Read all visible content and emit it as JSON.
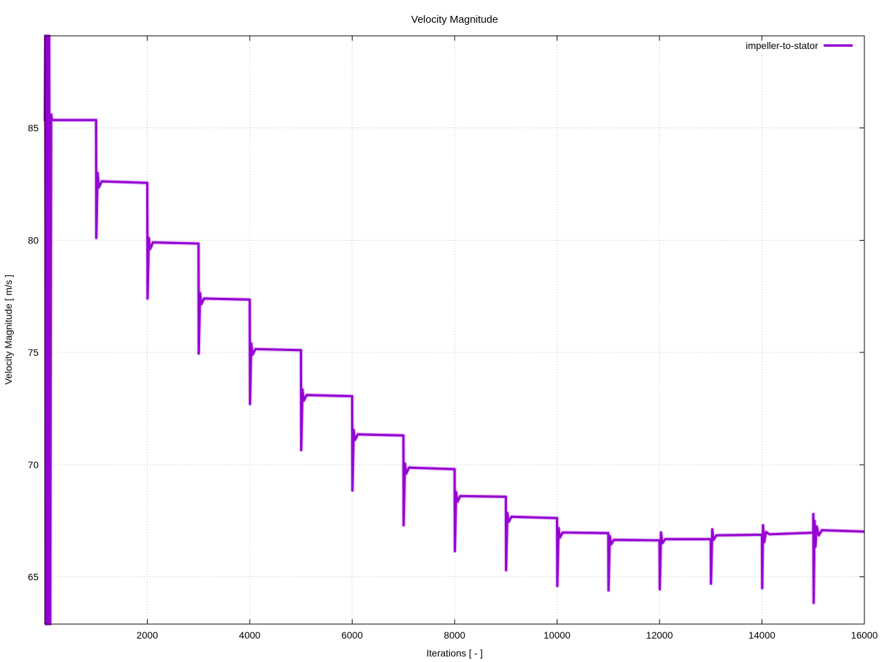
{
  "chart_data": {
    "type": "line",
    "title": "Velocity Magnitude",
    "xlabel": "Iterations [ - ]",
    "ylabel": "Velocity Magnitude [ m/s ]",
    "xlim": [
      0,
      16000
    ],
    "ylim": [
      62.9,
      89.1
    ],
    "xticks": [
      2000,
      4000,
      6000,
      8000,
      10000,
      12000,
      14000,
      16000
    ],
    "yticks": [
      65,
      70,
      75,
      80,
      85
    ],
    "grid": true,
    "grid_style": "dotted",
    "legend": {
      "position": "top-right-inside",
      "entries": [
        {
          "label": "impeller-to-stator",
          "color": "#9400d3"
        }
      ]
    },
    "series": [
      {
        "name": "impeller-to-stator",
        "color": "#9400d3",
        "points": [
          [
            1,
            85.3
          ],
          [
            10,
            89.1
          ],
          [
            25,
            62.9
          ],
          [
            45,
            89.1
          ],
          [
            65,
            62.9
          ],
          [
            85,
            89.1
          ],
          [
            105,
            62.9
          ],
          [
            122,
            85.6
          ],
          [
            140,
            85.35
          ],
          [
            1000,
            85.35
          ],
          [
            1005,
            80.1
          ],
          [
            1030,
            83.0
          ],
          [
            1055,
            82.35
          ],
          [
            1110,
            82.62
          ],
          [
            2000,
            82.55
          ],
          [
            2005,
            77.4
          ],
          [
            2030,
            80.1
          ],
          [
            2055,
            79.6
          ],
          [
            2110,
            79.9
          ],
          [
            3000,
            79.85
          ],
          [
            3005,
            74.95
          ],
          [
            3030,
            77.65
          ],
          [
            3055,
            77.15
          ],
          [
            3110,
            77.4
          ],
          [
            4000,
            77.35
          ],
          [
            4005,
            72.7
          ],
          [
            4030,
            75.4
          ],
          [
            4055,
            74.9
          ],
          [
            4110,
            75.15
          ],
          [
            5000,
            75.1
          ],
          [
            5005,
            70.65
          ],
          [
            5030,
            73.35
          ],
          [
            5055,
            72.85
          ],
          [
            5110,
            73.1
          ],
          [
            6000,
            73.05
          ],
          [
            6005,
            68.85
          ],
          [
            6030,
            71.55
          ],
          [
            6055,
            71.1
          ],
          [
            6110,
            71.35
          ],
          [
            7000,
            71.3
          ],
          [
            7005,
            67.3
          ],
          [
            7030,
            70.05
          ],
          [
            7055,
            69.6
          ],
          [
            7110,
            69.87
          ],
          [
            8000,
            69.8
          ],
          [
            8005,
            66.15
          ],
          [
            8030,
            68.78
          ],
          [
            8055,
            68.35
          ],
          [
            8110,
            68.6
          ],
          [
            9000,
            68.57
          ],
          [
            9005,
            65.3
          ],
          [
            9030,
            67.85
          ],
          [
            9055,
            67.45
          ],
          [
            9110,
            67.68
          ],
          [
            10000,
            67.62
          ],
          [
            10005,
            64.6
          ],
          [
            10030,
            67.18
          ],
          [
            10055,
            66.75
          ],
          [
            10110,
            66.98
          ],
          [
            11000,
            66.95
          ],
          [
            11005,
            64.4
          ],
          [
            11030,
            66.82
          ],
          [
            11055,
            66.45
          ],
          [
            11110,
            66.65
          ],
          [
            12000,
            66.63
          ],
          [
            12005,
            64.45
          ],
          [
            12030,
            66.98
          ],
          [
            12055,
            66.5
          ],
          [
            12110,
            66.68
          ],
          [
            13000,
            66.68
          ],
          [
            13005,
            64.7
          ],
          [
            13030,
            67.12
          ],
          [
            13055,
            66.65
          ],
          [
            13110,
            66.85
          ],
          [
            14000,
            66.88
          ],
          [
            14005,
            64.5
          ],
          [
            14022,
            67.3
          ],
          [
            14045,
            66.55
          ],
          [
            14080,
            67.0
          ],
          [
            14150,
            66.9
          ],
          [
            15000,
            66.97
          ],
          [
            15003,
            67.8
          ],
          [
            15010,
            63.85
          ],
          [
            15028,
            67.5
          ],
          [
            15045,
            66.35
          ],
          [
            15070,
            67.25
          ],
          [
            15110,
            66.85
          ],
          [
            15170,
            67.08
          ],
          [
            16000,
            67.02
          ]
        ]
      }
    ]
  }
}
